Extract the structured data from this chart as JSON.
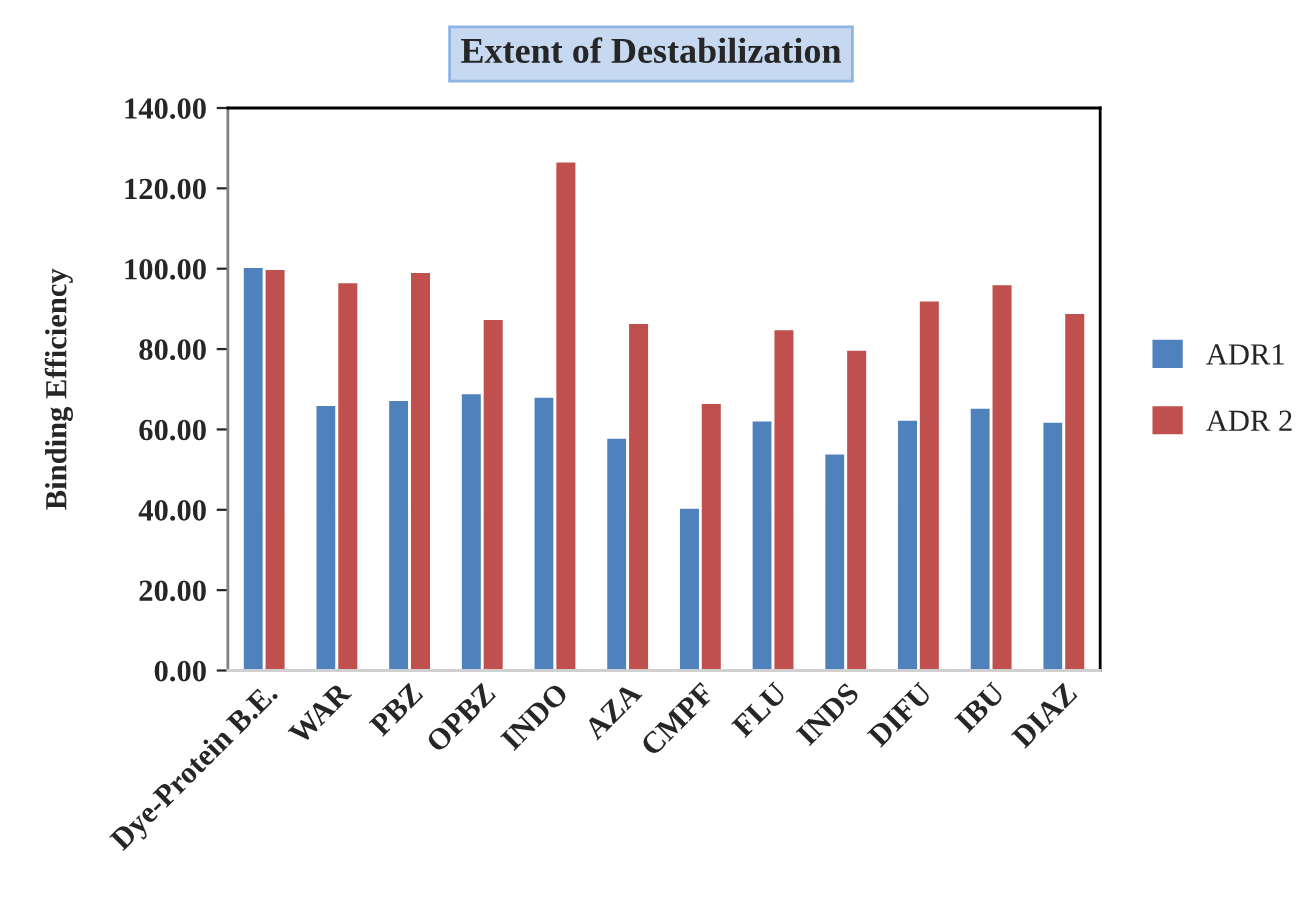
{
  "chart_data": {
    "type": "bar",
    "title": "Extent of Destabilization",
    "ylabel": "Binding Efficiency",
    "categories": [
      "Dye-Protein B.E.",
      "WAR",
      "PBZ",
      "OPBZ",
      "INDO",
      "AZA",
      "CMPF",
      "FLU",
      "INDS",
      "DIFU",
      "IBU",
      "DIAZ"
    ],
    "series": [
      {
        "name": "ADR1",
        "color": "#4f81bd",
        "values": [
          100.5,
          66.2,
          67.4,
          69.1,
          68.2,
          58.0,
          40.6,
          62.3,
          54.1,
          62.5,
          65.5,
          62.0
        ]
      },
      {
        "name": "ADR 2",
        "color": "#c0504d",
        "values": [
          100.0,
          96.7,
          99.3,
          87.6,
          126.8,
          86.6,
          66.7,
          85.0,
          79.9,
          92.2,
          96.2,
          89.1
        ]
      }
    ],
    "ylim": [
      0,
      140
    ],
    "yticks": [
      {
        "value": 0,
        "label": "0.00"
      },
      {
        "value": 20,
        "label": "20.00"
      },
      {
        "value": 40,
        "label": "40.00"
      },
      {
        "value": 60,
        "label": "60.00"
      },
      {
        "value": 80,
        "label": "80.00"
      },
      {
        "value": 100,
        "label": "100.00"
      },
      {
        "value": 120,
        "label": "120.00"
      },
      {
        "value": 140,
        "label": "140.00"
      }
    ],
    "grid": false,
    "legend": "right"
  }
}
